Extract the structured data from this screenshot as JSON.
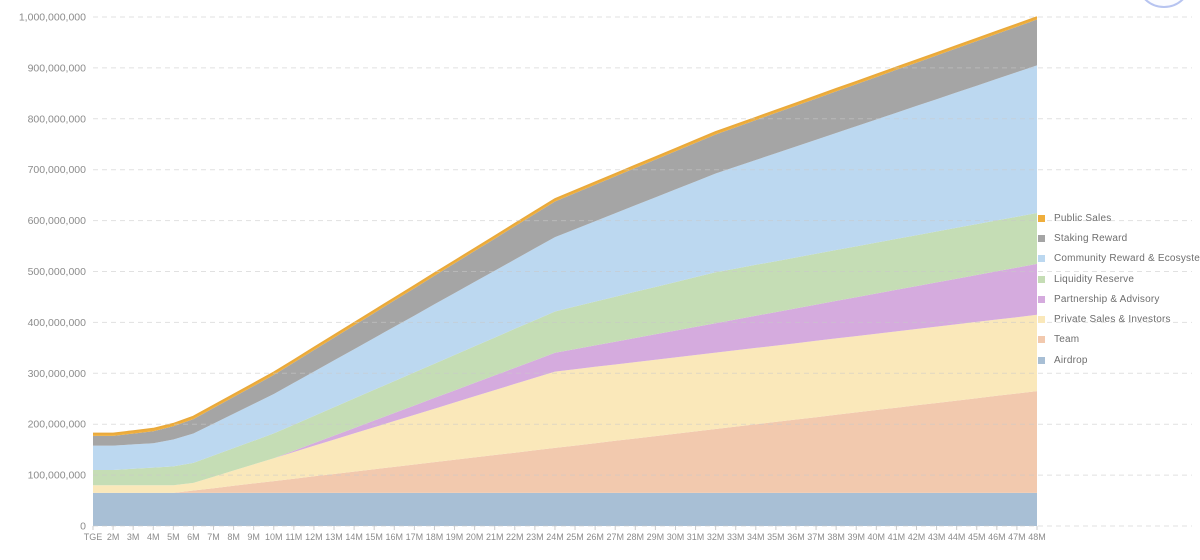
{
  "chart_data": {
    "type": "area",
    "stacked": true,
    "title": "",
    "unit": "tokens (values in millions)",
    "total_supply": 1000000000,
    "xlabel": "",
    "ylabel": "",
    "ylim": [
      0,
      1000000000
    ],
    "y_tick_step": 100000000,
    "grid": true,
    "legend_position": "right",
    "x_categories": [
      "TGE",
      "2M",
      "3M",
      "4M",
      "5M",
      "6M",
      "7M",
      "8M",
      "9M",
      "10M",
      "11M",
      "12M",
      "13M",
      "14M",
      "15M",
      "16M",
      "17M",
      "18M",
      "19M",
      "20M",
      "21M",
      "22M",
      "23M",
      "24M",
      "25M",
      "26M",
      "27M",
      "28M",
      "29M",
      "30M",
      "31M",
      "32M",
      "33M",
      "34M",
      "35M",
      "36M",
      "37M",
      "38M",
      "39M",
      "40M",
      "41M",
      "42M",
      "43M",
      "44M",
      "45M",
      "46M",
      "47M",
      "48M"
    ],
    "series_note": "listed top-of-stack first (legend order); values are cumulative unlocked tokens in millions",
    "series": [
      {
        "name": "Public Sales",
        "color": "#EFAE3C",
        "values": [
          5,
          5,
          5,
          5,
          5,
          5,
          5,
          5,
          5,
          5,
          5,
          5,
          5,
          5,
          5,
          5,
          5,
          5,
          5,
          5,
          5,
          5,
          5,
          5,
          5,
          5,
          5,
          5,
          5,
          5,
          5,
          5,
          5,
          5,
          5,
          5,
          5,
          5,
          5,
          5,
          5,
          5,
          5,
          5,
          5,
          5,
          5,
          5
        ]
      },
      {
        "name": "Staking Reward",
        "color": "#A5A5A5",
        "values": [
          19,
          19,
          21.3,
          23.6,
          26,
          28.3,
          30.6,
          32.9,
          35.2,
          37.5,
          39.9,
          42.2,
          44.5,
          46.8,
          49.1,
          51.5,
          53.8,
          56.1,
          58.4,
          60.7,
          63,
          65.4,
          67.7,
          70,
          70.8,
          71.7,
          72.5,
          73.3,
          74.2,
          75,
          75.8,
          76.7,
          77.5,
          78.3,
          79.2,
          80,
          80.8,
          81.7,
          82.5,
          83.3,
          84.2,
          85,
          85.8,
          86.7,
          87.5,
          88.3,
          89.2,
          90
        ]
      },
      {
        "name": "Community Reward & Ecosystem",
        "color": "#BCD8F0",
        "values": [
          48,
          48,
          48,
          48,
          52.9,
          57.8,
          62.7,
          67.6,
          72.5,
          77.4,
          82.3,
          87.2,
          92.1,
          97,
          101.9,
          106.8,
          111.7,
          116.6,
          121.5,
          126.4,
          131.3,
          136.2,
          141.1,
          146,
          152,
          158,
          164,
          170,
          176,
          182,
          188,
          194,
          200,
          206,
          212,
          218,
          224,
          230,
          236,
          242,
          248,
          254,
          260,
          266,
          272,
          278,
          284,
          290
        ]
      },
      {
        "name": "Liquidity Reserve",
        "color": "#C5DDB5",
        "values": [
          30,
          30,
          32.3,
          34.7,
          37,
          39.3,
          41.7,
          44,
          46.3,
          48.7,
          51,
          53.3,
          55.7,
          58,
          60.3,
          62.7,
          65,
          67.3,
          69.7,
          72,
          74.3,
          76.7,
          79,
          81.3,
          83.7,
          86,
          88.3,
          90.7,
          93,
          95.3,
          97.7,
          100,
          100,
          100,
          100,
          100,
          100,
          100,
          100,
          100,
          100,
          100,
          100,
          100,
          100,
          100,
          100,
          100
        ]
      },
      {
        "name": "Partnership & Advisory",
        "color": "#D5ABDE",
        "values": [
          0,
          0,
          0,
          0,
          0,
          0,
          0,
          0,
          0,
          0,
          2.6,
          5.3,
          7.9,
          10.5,
          13.2,
          15.8,
          18.4,
          21.1,
          23.7,
          26.3,
          28.9,
          31.6,
          34.2,
          36.8,
          39.5,
          42.1,
          44.7,
          47.4,
          50,
          52.6,
          55.3,
          57.9,
          60.5,
          63.2,
          65.8,
          68.4,
          71.1,
          73.7,
          76.3,
          78.9,
          81.6,
          84.2,
          86.8,
          89.5,
          92.1,
          94.7,
          97.4,
          100
        ]
      },
      {
        "name": "Private Sales & Investors",
        "color": "#FAE8BA",
        "values": [
          15,
          15,
          15,
          15,
          15,
          15,
          22.5,
          30,
          37.5,
          45,
          52.5,
          60,
          67.5,
          75,
          82.5,
          90,
          97.5,
          105,
          112.5,
          120,
          127.5,
          135,
          142.5,
          150,
          150,
          150,
          150,
          150,
          150,
          150,
          150,
          150,
          150,
          150,
          150,
          150,
          150,
          150,
          150,
          150,
          150,
          150,
          150,
          150,
          150,
          150,
          150,
          150
        ]
      },
      {
        "name": "Team",
        "color": "#F2C9AE",
        "values": [
          0,
          0,
          0,
          0,
          0,
          4.7,
          9.3,
          14,
          18.6,
          23.3,
          27.9,
          32.6,
          37.2,
          41.9,
          46.5,
          51.2,
          55.8,
          60.5,
          65.1,
          69.8,
          74.4,
          79.1,
          83.7,
          88.4,
          93,
          97.7,
          102.3,
          107,
          111.6,
          116.3,
          120.9,
          125.6,
          130.2,
          134.9,
          139.5,
          144.2,
          148.8,
          153.5,
          158.1,
          162.8,
          167.4,
          172.1,
          176.7,
          181.4,
          186,
          190.7,
          195.3,
          200
        ]
      },
      {
        "name": "Airdrop",
        "color": "#A8BFD5",
        "values": [
          65,
          65,
          65,
          65,
          65,
          65,
          65,
          65,
          65,
          65,
          65,
          65,
          65,
          65,
          65,
          65,
          65,
          65,
          65,
          65,
          65,
          65,
          65,
          65,
          65,
          65,
          65,
          65,
          65,
          65,
          65,
          65,
          65,
          65,
          65,
          65,
          65,
          65,
          65,
          65,
          65,
          65,
          65,
          65,
          65,
          65,
          65,
          65
        ]
      }
    ]
  }
}
